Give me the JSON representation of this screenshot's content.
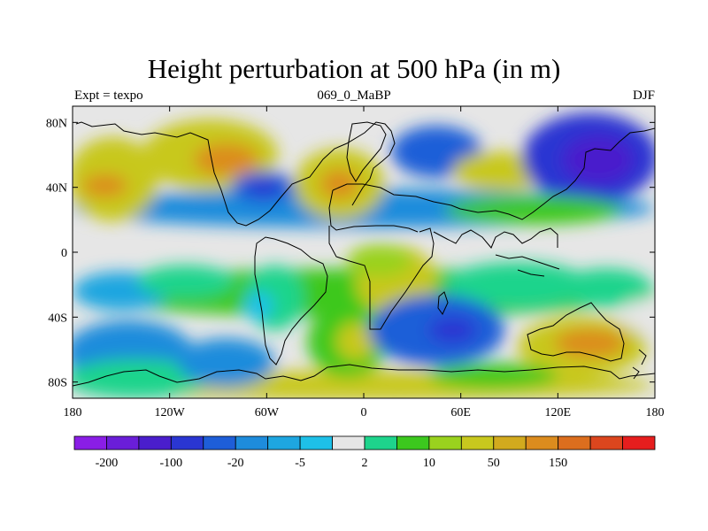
{
  "title": "Height perturbation at 500 hPa (in m)",
  "subtitle_left": "Expt = texpo",
  "subtitle_center": "069_0_MaBP",
  "subtitle_right": "DJF",
  "axes": {
    "x_ticks": [
      {
        "value": -180,
        "label": "180"
      },
      {
        "value": -120,
        "label": "120W"
      },
      {
        "value": -60,
        "label": "60W"
      },
      {
        "value": 0,
        "label": "0"
      },
      {
        "value": 60,
        "label": "60E"
      },
      {
        "value": 120,
        "label": "120E"
      },
      {
        "value": 180,
        "label": "180"
      }
    ],
    "y_ticks": [
      {
        "value": 80,
        "label": "80N"
      },
      {
        "value": 40,
        "label": "40N"
      },
      {
        "value": 0,
        "label": "0"
      },
      {
        "value": -40,
        "label": "40S"
      },
      {
        "value": -80,
        "label": "80S"
      }
    ],
    "lon_range": [
      -180,
      180
    ],
    "lat_range": [
      -90,
      90
    ]
  },
  "colorbar": {
    "colors": [
      "#8a1ee6",
      "#6a1ed8",
      "#4a1ecc",
      "#2a36d2",
      "#1e5ed8",
      "#1e8cdc",
      "#1ea6e0",
      "#1ec0e8",
      "#e6e6e6",
      "#1ed48c",
      "#3cc81e",
      "#9ad21e",
      "#c8c81e",
      "#d2aa1e",
      "#dc8c1e",
      "#dc6e1e",
      "#dc461e",
      "#e61e1e"
    ],
    "labels": [
      {
        "boundary": 1,
        "text": "-200"
      },
      {
        "boundary": 3,
        "text": "-100"
      },
      {
        "boundary": 5,
        "text": "-20"
      },
      {
        "boundary": 7,
        "text": "-5"
      },
      {
        "boundary": 9,
        "text": "2"
      },
      {
        "boundary": 11,
        "text": "10"
      },
      {
        "boundary": 13,
        "text": "50"
      },
      {
        "boundary": 15,
        "text": "150"
      }
    ]
  },
  "field": {
    "background": "#e6e6e6",
    "blobs": [
      {
        "lon": 0,
        "lat": 27,
        "rlon": 180,
        "rlat": 12,
        "color": "#1e8cdc"
      },
      {
        "lon": 0,
        "lat": -25,
        "rlon": 180,
        "rlat": 15,
        "color": "#3cc81e"
      },
      {
        "lon": 0,
        "lat": -82,
        "rlon": 180,
        "rlat": 9,
        "color": "#c8c81e"
      },
      {
        "lon": -155,
        "lat": 45,
        "rlon": 28,
        "rlat": 26,
        "color": "#c8c81e"
      },
      {
        "lon": -160,
        "lat": 41,
        "rlon": 14,
        "rlat": 7,
        "color": "#dc8c1e"
      },
      {
        "lon": -95,
        "lat": 60,
        "rlon": 42,
        "rlat": 22,
        "color": "#c8c81e"
      },
      {
        "lon": -85,
        "lat": 57,
        "rlon": 20,
        "rlat": 10,
        "color": "#dc8c1e"
      },
      {
        "lon": -62,
        "lat": 40,
        "rlon": 20,
        "rlat": 10,
        "color": "#1e5ed8"
      },
      {
        "lon": -62,
        "lat": 40,
        "rlon": 10,
        "rlat": 5,
        "color": "#2a36d2"
      },
      {
        "lon": -15,
        "lat": 42,
        "rlon": 28,
        "rlat": 22,
        "color": "#c8c81e"
      },
      {
        "lon": -15,
        "lat": 42,
        "rlon": 12,
        "rlat": 9,
        "color": "#dc8c1e"
      },
      {
        "lon": 45,
        "lat": 62,
        "rlon": 28,
        "rlat": 16,
        "color": "#1e5ed8"
      },
      {
        "lon": 85,
        "lat": 50,
        "rlon": 30,
        "rlat": 12,
        "color": "#c8c81e"
      },
      {
        "lon": 140,
        "lat": 58,
        "rlon": 42,
        "rlat": 28,
        "color": "#2a36d2"
      },
      {
        "lon": 145,
        "lat": 57,
        "rlon": 22,
        "rlat": 15,
        "color": "#4a1ecc"
      },
      {
        "lon": 105,
        "lat": 26,
        "rlon": 55,
        "rlat": 9,
        "color": "#3cc81e"
      },
      {
        "lon": -150,
        "lat": -24,
        "rlon": 30,
        "rlat": 12,
        "color": "#1ea6e0"
      },
      {
        "lon": -110,
        "lat": -18,
        "rlon": 30,
        "rlat": 10,
        "color": "#1ed48c"
      },
      {
        "lon": -55,
        "lat": -28,
        "rlon": 18,
        "rlat": 20,
        "color": "#1ed48c"
      },
      {
        "lon": -65,
        "lat": -33,
        "rlon": 9,
        "rlat": 9,
        "color": "#1ec0e8"
      },
      {
        "lon": 20,
        "lat": -18,
        "rlon": 25,
        "rlat": 22,
        "color": "#c8c81e"
      },
      {
        "lon": 10,
        "lat": -5,
        "rlon": 20,
        "rlat": 10,
        "color": "#9ad21e"
      },
      {
        "lon": 95,
        "lat": -20,
        "rlon": 45,
        "rlat": 14,
        "color": "#1ed48c"
      },
      {
        "lon": 150,
        "lat": -22,
        "rlon": 28,
        "rlat": 12,
        "color": "#1ed48c"
      },
      {
        "lon": 170,
        "lat": -40,
        "rlon": 10,
        "rlat": 10,
        "color": "#e6e6e6"
      },
      {
        "lon": -145,
        "lat": -62,
        "rlon": 40,
        "rlat": 20,
        "color": "#1e8cdc"
      },
      {
        "lon": -140,
        "lat": -78,
        "rlon": 45,
        "rlat": 12,
        "color": "#1ed48c"
      },
      {
        "lon": -10,
        "lat": -55,
        "rlon": 25,
        "rlat": 22,
        "color": "#3cc81e"
      },
      {
        "lon": -5,
        "lat": -55,
        "rlon": 12,
        "rlat": 12,
        "color": "#c8c81e"
      },
      {
        "lon": 45,
        "lat": -48,
        "rlon": 42,
        "rlat": 22,
        "color": "#1e5ed8"
      },
      {
        "lon": 55,
        "lat": -48,
        "rlon": 15,
        "rlat": 8,
        "color": "#2a36d2"
      },
      {
        "lon": 135,
        "lat": -58,
        "rlon": 40,
        "rlat": 18,
        "color": "#c8c81e"
      },
      {
        "lon": 140,
        "lat": -56,
        "rlon": 22,
        "rlat": 9,
        "color": "#dc8c1e"
      },
      {
        "lon": -85,
        "lat": -68,
        "rlon": 30,
        "rlat": 15,
        "color": "#1e8cdc"
      },
      {
        "lon": 80,
        "lat": -76,
        "rlon": 40,
        "rlat": 8,
        "color": "#3cc81e"
      }
    ]
  },
  "coast_color": "#000000"
}
